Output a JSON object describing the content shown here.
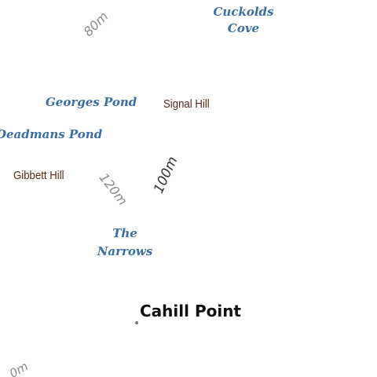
{
  "colors": {
    "water_label": "#3a6ea5",
    "hill_label": "#5a2a12",
    "contour_label": "#8a8a8a",
    "contour_label_dark": "#333333",
    "point_label": "#111111",
    "point_marker": "#777777"
  },
  "labels": {
    "contour_80": "80m",
    "cuckolds_cove_line1": "Cuckolds",
    "cuckolds_cove_line2": "Cove",
    "georges_pond": "Georges Pond",
    "signal_hill": "Signal Hill",
    "deadmans_pond": "Deadmans Pond",
    "gibbett_hill": "Gibbett Hill",
    "contour_120": "120m",
    "contour_100": "100m",
    "the_narrows_line1": "The",
    "the_narrows_line2": "Narrows",
    "cahill_point": "Cahill Point",
    "contour_partial": "0m"
  }
}
